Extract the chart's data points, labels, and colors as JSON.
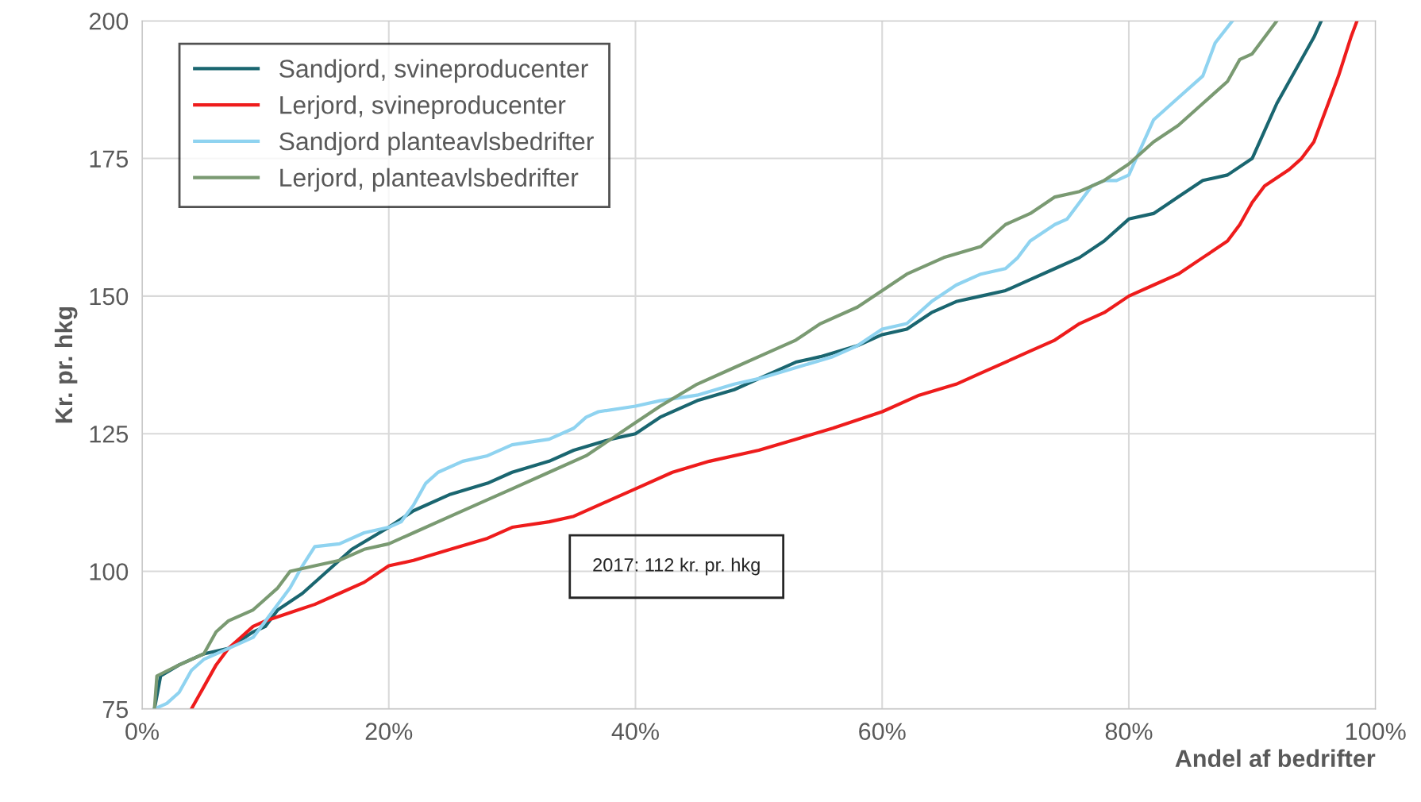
{
  "chart_data": {
    "type": "line",
    "xlabel": "Andel af bedrifter",
    "ylabel": "Kr. pr. hkg",
    "annotations": [
      "2017: 112 kr. pr. hkg"
    ],
    "xlim": [
      0,
      100
    ],
    "ylim": [
      75,
      200
    ],
    "xticks": [
      {
        "value": 0,
        "label": "0%"
      },
      {
        "value": 20,
        "label": "20%"
      },
      {
        "value": 40,
        "label": "40%"
      },
      {
        "value": 60,
        "label": "60%"
      },
      {
        "value": 80,
        "label": "80%"
      },
      {
        "value": 100,
        "label": "100%"
      }
    ],
    "yticks": [
      75,
      100,
      125,
      150,
      175,
      200
    ],
    "grid": true,
    "legend": "top left",
    "marker": "none",
    "line_style": "solid",
    "series": [
      {
        "name": "Sandjord, svineproducenter",
        "color": "#1a6670",
        "x": [
          1,
          1.5,
          3,
          5,
          7,
          9,
          10,
          11,
          13,
          15,
          17,
          20,
          22,
          25,
          28,
          30,
          33,
          35,
          38,
          40,
          42,
          45,
          48,
          50,
          53,
          55,
          58,
          60,
          62,
          64,
          66,
          68,
          70,
          72,
          74,
          76,
          78,
          80,
          82,
          84,
          86,
          88,
          90,
          91,
          92,
          93,
          94,
          95,
          95.6
        ],
        "values": [
          75,
          81,
          83,
          85,
          86,
          89,
          90,
          93,
          96,
          100,
          104,
          108,
          111,
          114,
          116,
          118,
          120,
          122,
          124,
          125,
          128,
          131,
          133,
          135,
          138,
          139,
          141,
          143,
          144,
          147,
          149,
          150,
          151,
          153,
          155,
          157,
          160,
          164,
          165,
          168,
          171,
          172,
          175,
          180,
          185,
          189,
          193,
          197,
          200
        ]
      },
      {
        "name": "Lerjord, svineproducenter",
        "color": "#ee1c1c",
        "x": [
          4,
          5,
          6,
          7,
          8,
          9,
          10,
          12,
          14,
          16,
          18,
          20,
          22,
          25,
          28,
          30,
          33,
          35,
          38,
          40,
          43,
          46,
          50,
          53,
          56,
          60,
          63,
          66,
          68,
          70,
          72,
          74,
          76,
          78,
          80,
          82,
          84,
          86,
          88,
          89,
          90,
          91,
          93,
          94,
          95,
          96,
          97,
          98,
          98.5
        ],
        "values": [
          75,
          79,
          83,
          86,
          88,
          90,
          91,
          92.5,
          94,
          96,
          98,
          101,
          102,
          104,
          106,
          108,
          109,
          110,
          113,
          115,
          118,
          120,
          122,
          124,
          126,
          129,
          132,
          134,
          136,
          138,
          140,
          142,
          145,
          147,
          150,
          152,
          154,
          157,
          160,
          163,
          167,
          170,
          173,
          175,
          178,
          184,
          190,
          197,
          200
        ]
      },
      {
        "name": "Sandjord planteavlsbedrifter",
        "color": "#8fd3f0",
        "x": [
          1,
          2,
          3,
          4,
          5,
          7,
          9,
          10,
          12,
          13,
          14,
          16,
          18,
          20,
          21,
          22,
          23,
          24,
          26,
          28,
          30,
          33,
          35,
          36,
          37,
          40,
          42,
          45,
          48,
          50,
          53,
          56,
          58,
          60,
          62,
          64,
          66,
          68,
          70,
          71,
          72,
          74,
          75,
          76,
          77,
          78,
          79,
          80,
          81,
          82,
          84,
          86,
          87,
          88.4
        ],
        "values": [
          75,
          76,
          78,
          82,
          84,
          86,
          88,
          91,
          97,
          101,
          104.5,
          105,
          107,
          108,
          109,
          112,
          116,
          118,
          120,
          121,
          123,
          124,
          126,
          128,
          129,
          130,
          131,
          132,
          134,
          135,
          137,
          139,
          141,
          144,
          145,
          149,
          152,
          154,
          155,
          157,
          160,
          163,
          164,
          167,
          170,
          171,
          171,
          172,
          177,
          182,
          186,
          190,
          196,
          200
        ]
      },
      {
        "name": "Lerjord, planteavlsbedrifter",
        "color": "#7a9a72",
        "x": [
          1,
          1.2,
          3,
          5,
          6,
          7,
          9,
          10,
          11,
          12,
          14,
          16,
          18,
          20,
          22,
          25,
          28,
          30,
          33,
          36,
          38,
          40,
          42,
          45,
          48,
          50,
          53,
          55,
          58,
          60,
          62,
          65,
          68,
          70,
          72,
          74,
          76,
          78,
          80,
          82,
          84,
          86,
          88,
          89,
          90,
          92
        ],
        "values": [
          75,
          81,
          83,
          85,
          89,
          91,
          93,
          95,
          97,
          100,
          101,
          102,
          104,
          105,
          107,
          110,
          113,
          115,
          118,
          121,
          124,
          127,
          130,
          134,
          137,
          139,
          142,
          145,
          148,
          151,
          154,
          157,
          159,
          163,
          165,
          168,
          169,
          171,
          174,
          178,
          181,
          185,
          189,
          193,
          194,
          200
        ]
      }
    ]
  }
}
